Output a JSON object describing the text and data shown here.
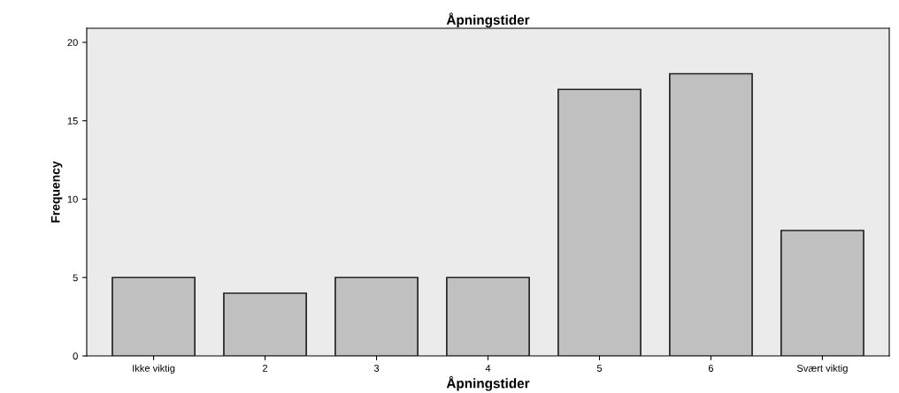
{
  "chart_data": {
    "type": "bar",
    "title": "Åpningstider",
    "xlabel": "Åpningstider",
    "ylabel": "Frequency",
    "categories": [
      "Ikke viktig",
      "2",
      "3",
      "4",
      "5",
      "6",
      "Svært viktig"
    ],
    "values": [
      5,
      4,
      5,
      5,
      17,
      18,
      8
    ],
    "color": "#c0c0c0",
    "ylim": [
      0,
      20.9
    ],
    "yticks": [
      0,
      5,
      10,
      15,
      20
    ],
    "grid": false
  }
}
